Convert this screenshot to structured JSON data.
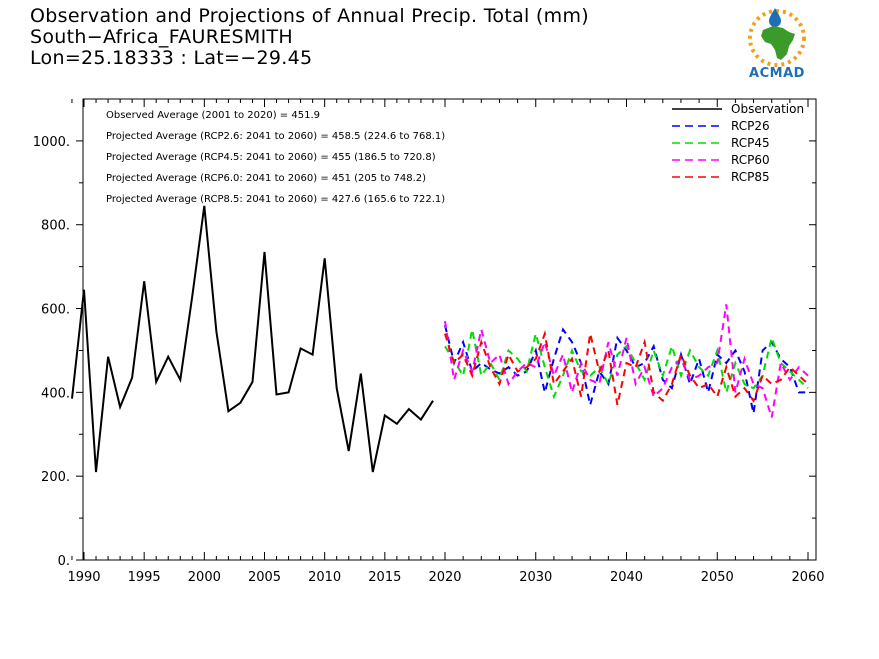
{
  "header": {
    "line1": "Observation and Projections of Annual Precip. Total (mm)",
    "line2": "South−Africa_FAURESMITH",
    "line3": "Lon=25.18333 : Lat=−29.45"
  },
  "logo": {
    "text": "ACMAD",
    "colors": {
      "africa": "#3a9a2a",
      "sun": "#f2a01b",
      "drop": "#1f6fb5"
    }
  },
  "chart_data": {
    "type": "line",
    "xlim": [
      1989,
      2060
    ],
    "ylim": [
      0,
      1100
    ],
    "x_ticks": [
      1990,
      1995,
      2000,
      2005,
      2010,
      2015,
      2020,
      2030,
      2040,
      2050,
      2060
    ],
    "y_ticks": [
      0,
      200,
      400,
      600,
      800,
      1000
    ],
    "y_tick_labels": [
      "0.",
      "200.",
      "400.",
      "600.",
      "800.",
      "1000."
    ],
    "annotations": [
      "Observed Average (2001 to 2020) = 451.9",
      "Projected Average (RCP2.6: 2041 to 2060) = 458.5 (224.6 to 768.1)",
      "Projected Average (RCP4.5: 2041 to 2060) = 455 (186.5 to 720.8)",
      "Projected Average (RCP6.0: 2041 to 2060) = 451 (205 to 748.2)",
      "Projected Average (RCP8.5: 2041 to 2060) = 427.6 (165.6 to 722.1)"
    ],
    "legend_position": "top-right",
    "series": [
      {
        "name": "Observation",
        "color": "#000000",
        "dashed": false,
        "x": [
          1989,
          1990,
          1991,
          1992,
          1993,
          1994,
          1995,
          1996,
          1997,
          1998,
          1999,
          2000,
          2001,
          2002,
          2003,
          2004,
          2005,
          2006,
          2007,
          2008,
          2009,
          2010,
          2011,
          2012,
          2013,
          2014,
          2015,
          2016,
          2017,
          2018,
          2019
        ],
        "y": [
          385,
          645,
          210,
          485,
          365,
          435,
          665,
          425,
          485,
          430,
          630,
          845,
          545,
          355,
          375,
          425,
          735,
          395,
          400,
          505,
          490,
          720,
          410,
          260,
          445,
          210,
          345,
          325,
          360,
          335,
          380
        ]
      },
      {
        "name": "RCP26",
        "color": "#0000ff",
        "dashed": true,
        "x": [
          2020,
          2021,
          2022,
          2023,
          2024,
          2025,
          2026,
          2027,
          2028,
          2029,
          2030,
          2031,
          2032,
          2033,
          2034,
          2035,
          2036,
          2037,
          2038,
          2039,
          2040,
          2041,
          2042,
          2043,
          2044,
          2045,
          2046,
          2047,
          2048,
          2049,
          2050,
          2051,
          2052,
          2053,
          2054,
          2055,
          2056,
          2057,
          2058,
          2059,
          2060
        ],
        "y": [
          560,
          470,
          520,
          450,
          470,
          455,
          445,
          460,
          440,
          450,
          500,
          400,
          480,
          550,
          520,
          470,
          370,
          450,
          420,
          530,
          500,
          460,
          470,
          510,
          430,
          410,
          490,
          420,
          480,
          400,
          490,
          470,
          500,
          450,
          350,
          500,
          520,
          480,
          460,
          400,
          400
        ]
      },
      {
        "name": "RCP45",
        "color": "#00dd00",
        "dashed": true,
        "x": [
          2020,
          2021,
          2022,
          2023,
          2024,
          2025,
          2026,
          2027,
          2028,
          2029,
          2030,
          2031,
          2032,
          2033,
          2034,
          2035,
          2036,
          2037,
          2038,
          2039,
          2040,
          2041,
          2042,
          2043,
          2044,
          2045,
          2046,
          2047,
          2048,
          2049,
          2050,
          2051,
          2052,
          2053,
          2054,
          2055,
          2056,
          2057,
          2058,
          2059,
          2060
        ],
        "y": [
          510,
          475,
          440,
          550,
          440,
          470,
          430,
          500,
          480,
          450,
          540,
          460,
          390,
          440,
          500,
          450,
          440,
          460,
          420,
          490,
          510,
          470,
          430,
          500,
          440,
          510,
          440,
          500,
          460,
          440,
          500,
          400,
          470,
          420,
          410,
          440,
          530,
          470,
          450,
          430,
          410
        ]
      },
      {
        "name": "RCP60",
        "color": "#ff00ff",
        "dashed": true,
        "x": [
          2020,
          2021,
          2022,
          2023,
          2024,
          2025,
          2026,
          2027,
          2028,
          2029,
          2030,
          2031,
          2032,
          2033,
          2034,
          2035,
          2036,
          2037,
          2038,
          2039,
          2040,
          2041,
          2042,
          2043,
          2044,
          2045,
          2046,
          2047,
          2048,
          2049,
          2050,
          2051,
          2052,
          2053,
          2054,
          2055,
          2056,
          2057,
          2058,
          2059,
          2060
        ],
        "y": [
          570,
          430,
          500,
          450,
          550,
          470,
          490,
          420,
          450,
          470,
          460,
          520,
          440,
          490,
          400,
          470,
          430,
          420,
          520,
          440,
          530,
          420,
          460,
          390,
          410,
          460,
          480,
          430,
          440,
          460,
          470,
          610,
          400,
          480,
          420,
          410,
          340,
          470,
          430,
          460,
          440
        ]
      },
      {
        "name": "RCP85",
        "color": "#ff0000",
        "dashed": true,
        "x": [
          2020,
          2021,
          2022,
          2023,
          2024,
          2025,
          2026,
          2027,
          2028,
          2029,
          2030,
          2031,
          2032,
          2033,
          2034,
          2035,
          2036,
          2037,
          2038,
          2039,
          2040,
          2041,
          2042,
          2043,
          2044,
          2045,
          2046,
          2047,
          2048,
          2049,
          2050,
          2051,
          2052,
          2053,
          2054,
          2055,
          2056,
          2057,
          2058,
          2059,
          2060
        ],
        "y": [
          540,
          470,
          490,
          440,
          520,
          460,
          420,
          490,
          450,
          460,
          480,
          540,
          420,
          450,
          480,
          390,
          540,
          450,
          500,
          370,
          470,
          460,
          520,
          400,
          380,
          420,
          490,
          440,
          410,
          420,
          390,
          460,
          390,
          410,
          380,
          440,
          420,
          430,
          460,
          440,
          420
        ]
      }
    ]
  }
}
